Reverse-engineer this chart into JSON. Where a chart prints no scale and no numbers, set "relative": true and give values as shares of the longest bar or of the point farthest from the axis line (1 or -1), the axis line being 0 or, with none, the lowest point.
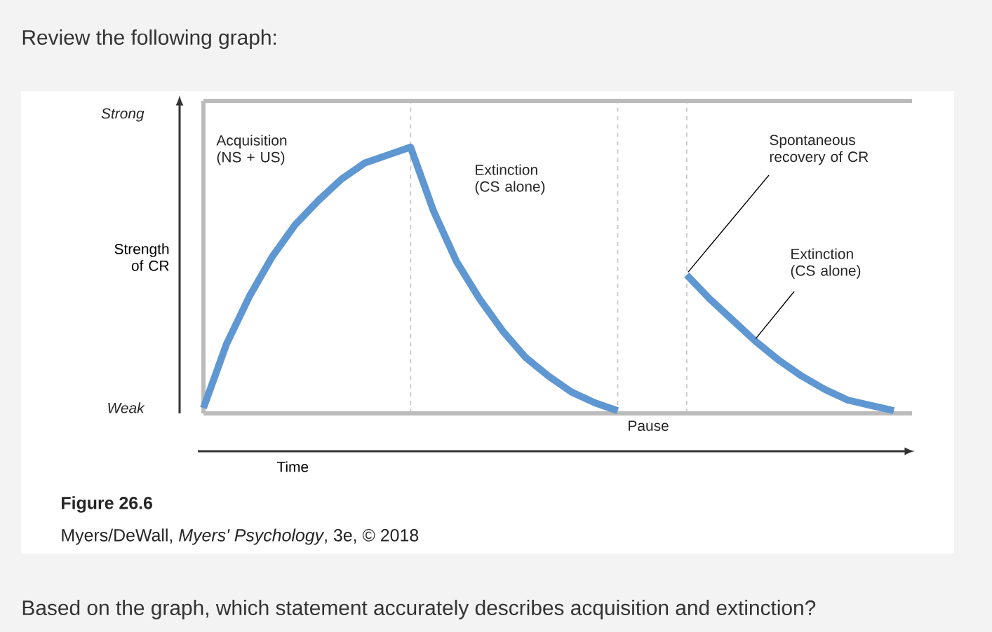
{
  "chart_data": {
    "type": "line",
    "title": "Review the following graph:",
    "ylabel": "Strength of CR",
    "xlabel": "Time",
    "relative": true,
    "grid": "x",
    "categories": [
      null,
      null,
      null,
      null,
      null,
      null,
      null,
      null,
      null,
      null,
      null,
      null,
      null,
      null,
      null,
      null,
      null,
      null,
      null,
      null,
      null,
      null,
      null,
      null,
      null,
      null,
      null,
      null,
      null,
      null,
      null
    ],
    "series": [
      {
        "color": "#5e97d1",
        "values": [
          0.02,
          0.26,
          0.44,
          0.59,
          0.71,
          0.8,
          0.88,
          0.94,
          0.97,
          1.0,
          0.76,
          0.57,
          0.43,
          0.31,
          0.21,
          0.14,
          0.08,
          0.04,
          0.01,
          null,
          null,
          null,
          null,
          null,
          null,
          null,
          null,
          null,
          null,
          null,
          null
        ]
      },
      {
        "color": "#5e97d1",
        "values": [
          null,
          null,
          null,
          null,
          null,
          null,
          null,
          null,
          null,
          null,
          null,
          null,
          null,
          null,
          null,
          null,
          null,
          null,
          null,
          null,
          null,
          0.52,
          0.43,
          0.35,
          0.27,
          0.2,
          0.14,
          0.09,
          0.05,
          0.03,
          0.01
        ]
      }
    ],
    "annotations": [
      "Strong",
      "Weak",
      "Acquisition (NS + US)",
      "Extinction (CS alone)",
      "Spontaneous recovery of CR",
      "Extinction (CS alone)",
      "Pause",
      "Figure 26.6",
      "Myers/DeWall, *Myers' Psychology*, 3e, © 2018",
      "Based on the graph, which statement accurately describes acquisition and extinction?"
    ]
  }
}
